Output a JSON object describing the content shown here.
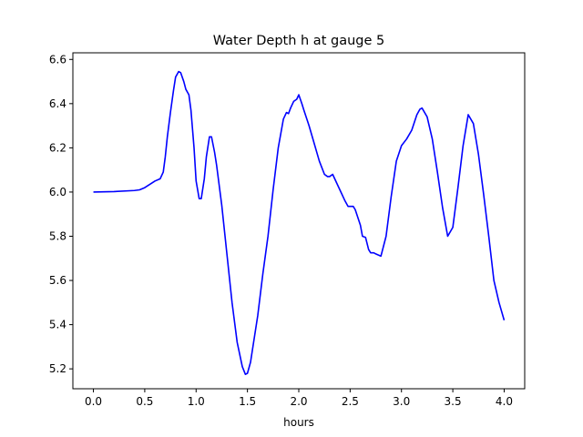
{
  "chart_data": {
    "type": "line",
    "title": "Water Depth h at gauge 5",
    "xlabel": "hours",
    "ylabel": "",
    "xlim": [
      -0.2,
      4.2
    ],
    "ylim": [
      5.11,
      6.63
    ],
    "xticks": [
      0.0,
      0.5,
      1.0,
      1.5,
      2.0,
      2.5,
      3.0,
      3.5,
      4.0
    ],
    "xtick_labels": [
      "0.0",
      "0.5",
      "1.0",
      "1.5",
      "2.0",
      "2.5",
      "3.0",
      "3.5",
      "4.0"
    ],
    "yticks": [
      5.2,
      5.4,
      5.6,
      5.8,
      6.0,
      6.2,
      6.4,
      6.6
    ],
    "ytick_labels": [
      "5.2",
      "5.4",
      "5.6",
      "5.8",
      "6.0",
      "6.2",
      "6.4",
      "6.6"
    ],
    "grid": false,
    "series": [
      {
        "color": "#0000ff",
        "x": [
          0.0,
          0.2,
          0.4,
          0.45,
          0.5,
          0.55,
          0.6,
          0.65,
          0.68,
          0.7,
          0.72,
          0.75,
          0.78,
          0.8,
          0.83,
          0.85,
          0.88,
          0.9,
          0.93,
          0.95,
          0.98,
          1.0,
          1.03,
          1.05,
          1.08,
          1.1,
          1.13,
          1.15,
          1.18,
          1.2,
          1.25,
          1.3,
          1.35,
          1.4,
          1.45,
          1.48,
          1.5,
          1.53,
          1.55,
          1.6,
          1.65,
          1.7,
          1.75,
          1.8,
          1.85,
          1.88,
          1.9,
          1.92,
          1.95,
          1.98,
          2.0,
          2.03,
          2.05,
          2.1,
          2.15,
          2.2,
          2.25,
          2.28,
          2.3,
          2.33,
          2.35,
          2.4,
          2.45,
          2.48,
          2.5,
          2.53,
          2.55,
          2.6,
          2.62,
          2.65,
          2.68,
          2.7,
          2.73,
          2.75,
          2.8,
          2.85,
          2.9,
          2.95,
          3.0,
          3.05,
          3.1,
          3.15,
          3.18,
          3.2,
          3.25,
          3.3,
          3.35,
          3.4,
          3.45,
          3.5,
          3.55,
          3.6,
          3.65,
          3.7,
          3.75,
          3.8,
          3.85,
          3.9,
          3.95,
          4.0
        ],
        "y": [
          6.0,
          6.002,
          6.007,
          6.01,
          6.02,
          6.035,
          6.05,
          6.06,
          6.09,
          6.16,
          6.25,
          6.36,
          6.46,
          6.52,
          6.545,
          6.54,
          6.5,
          6.465,
          6.44,
          6.37,
          6.2,
          6.05,
          5.97,
          5.97,
          6.06,
          6.16,
          6.25,
          6.25,
          6.18,
          6.12,
          5.94,
          5.72,
          5.5,
          5.32,
          5.21,
          5.175,
          5.18,
          5.23,
          5.29,
          5.44,
          5.63,
          5.8,
          6.01,
          6.2,
          6.33,
          6.36,
          6.355,
          6.38,
          6.41,
          6.42,
          6.44,
          6.4,
          6.37,
          6.3,
          6.22,
          6.14,
          6.08,
          6.07,
          6.07,
          6.08,
          6.06,
          6.01,
          5.96,
          5.935,
          5.935,
          5.935,
          5.92,
          5.85,
          5.8,
          5.795,
          5.74,
          5.725,
          5.725,
          5.72,
          5.71,
          5.8,
          5.98,
          6.14,
          6.21,
          6.24,
          6.28,
          6.35,
          6.375,
          6.38,
          6.34,
          6.24,
          6.09,
          5.93,
          5.8,
          5.84,
          6.02,
          6.21,
          6.35,
          6.31,
          6.17,
          5.99,
          5.8,
          5.6,
          5.5,
          5.42
        ]
      }
    ]
  }
}
